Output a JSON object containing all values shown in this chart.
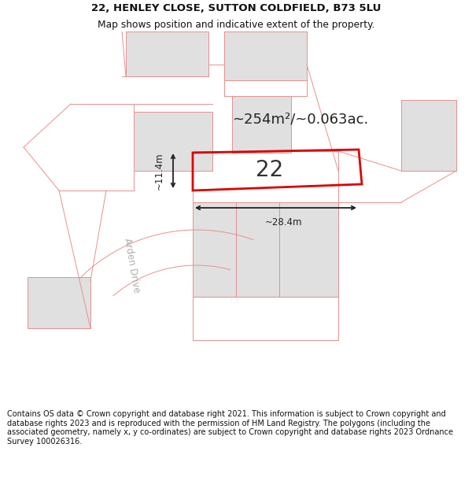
{
  "title_line1": "22, HENLEY CLOSE, SUTTON COLDFIELD, B73 5LU",
  "title_line2": "Map shows position and indicative extent of the property.",
  "footer": "Contains OS data © Crown copyright and database right 2021. This information is subject to Crown copyright and database rights 2023 and is reproduced with the permission of HM Land Registry. The polygons (including the associated geometry, namely x, y co-ordinates) are subject to Crown copyright and database rights 2023 Ordnance Survey 100026316.",
  "area_label": "~254m²/~0.063ac.",
  "house_number": "22",
  "width_label": "~28.4m",
  "height_label": "~11.4m",
  "bg_color": "#ffffff",
  "map_bg": "#ffffff",
  "neighbor_fill": "#e0e0e0",
  "neighbor_outline": "#c8b0b0",
  "red_line_color": "#e89090",
  "plot_outline_color": "#dd0000",
  "dim_arrow_color": "#222222",
  "road_text_color": "#b0b0b0",
  "title_fontsize": 9.5,
  "subtitle_fontsize": 8.8,
  "area_fontsize": 13,
  "number_fontsize": 20,
  "footer_fontsize": 7.0,
  "title_bold": true
}
